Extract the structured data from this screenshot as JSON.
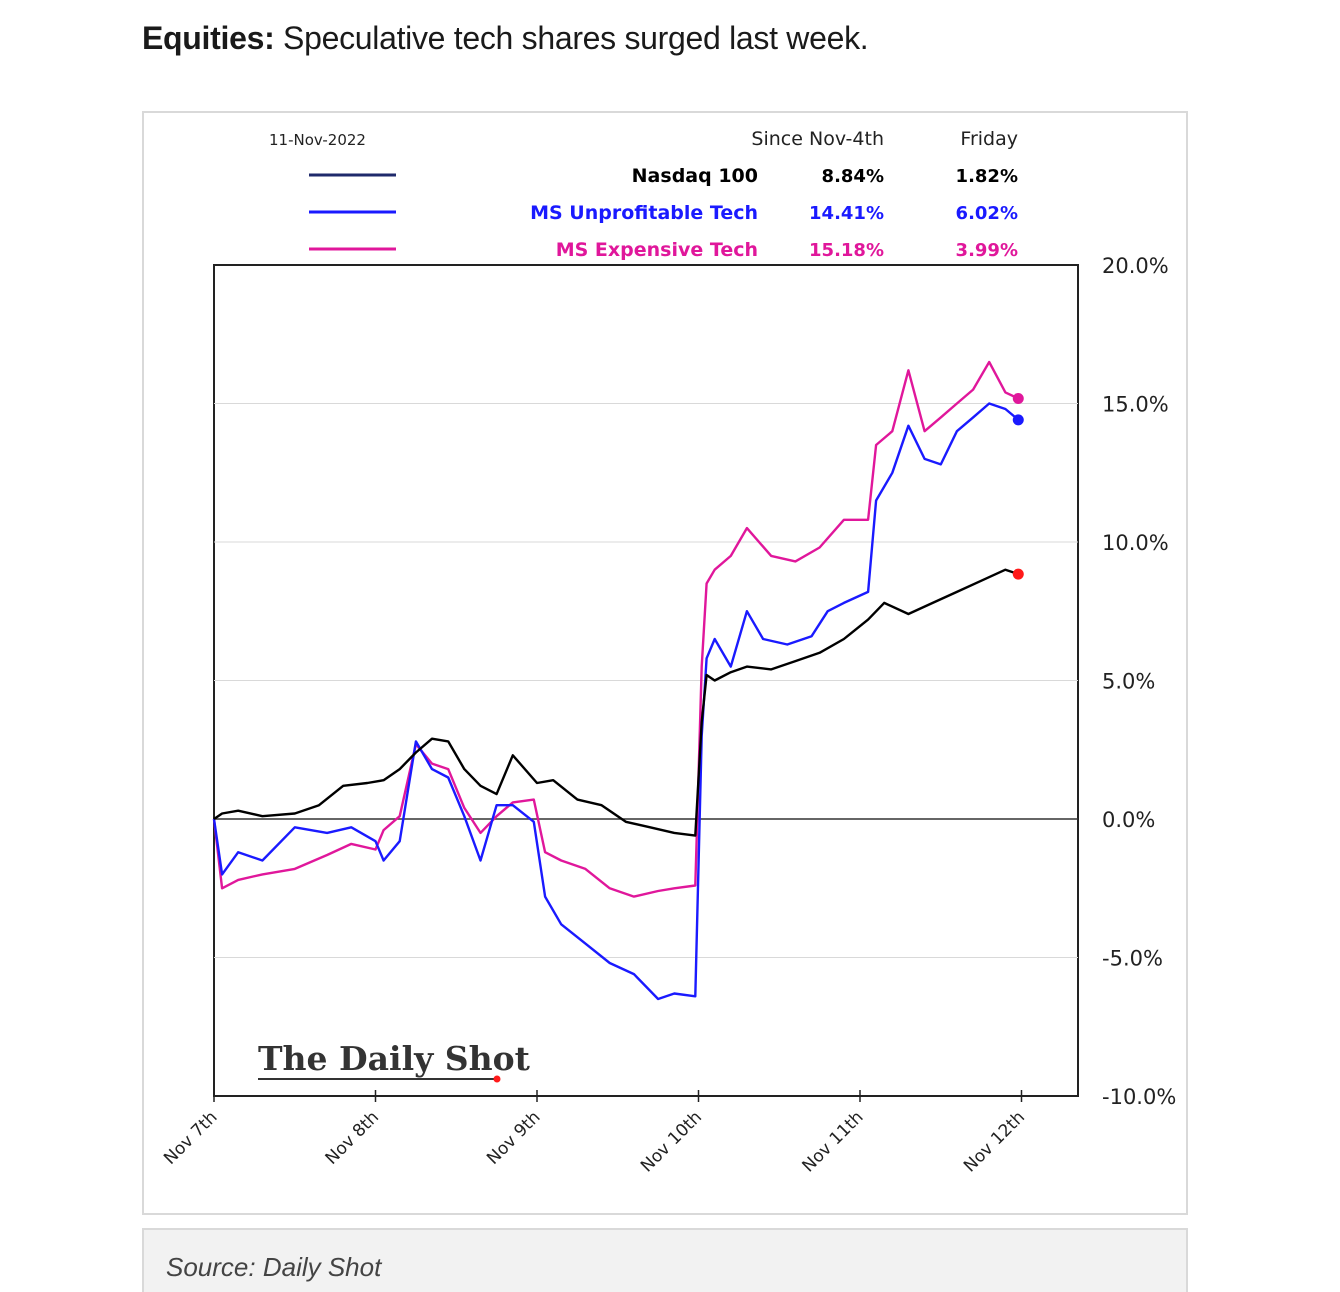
{
  "headline": {
    "lead": "Equities:",
    "text": " Speculative tech shares surged last week."
  },
  "caption": "Source: Daily Shot",
  "logo": "The Daily Shot",
  "colors": {
    "nasdaq": "#000000",
    "unprofitable": "#1a1aff",
    "expensive": "#e0179b",
    "endpoint_nasdaq": "#ff1a1a",
    "legend_nasdaq_line": "#1f2a6b",
    "grid": "#d9d9d9"
  },
  "legend": {
    "date": "11-Nov-2022",
    "col_since": "Since Nov-4th",
    "col_friday": "Friday",
    "rows": [
      {
        "name": "Nasdaq 100",
        "since": "8.84%",
        "friday": "1.82%",
        "color": "#000000",
        "line_color": "#1f2a6b"
      },
      {
        "name": "MS Unprofitable Tech",
        "since": "14.41%",
        "friday": "6.02%",
        "color": "#1a1aff",
        "line_color": "#1a1aff"
      },
      {
        "name": "MS Expensive Tech",
        "since": "15.18%",
        "friday": "3.99%",
        "color": "#e0179b",
        "line_color": "#e0179b"
      }
    ]
  },
  "chart_data": {
    "type": "line",
    "ylim": [
      -10,
      20
    ],
    "yticks": [
      20,
      15,
      10,
      5,
      0,
      -5,
      -10
    ],
    "ytick_labels": [
      "20.0%",
      "15.0%",
      "10.0%",
      "5.0%",
      "0.0%",
      "-5.0%",
      "-10.0%"
    ],
    "xlim": [
      0,
      5.2
    ],
    "xticks": [
      0,
      1,
      2,
      3,
      4,
      5
    ],
    "xtick_labels": [
      "Nov 7th",
      "Nov 8th",
      "Nov 9th",
      "Nov 10th",
      "Nov 11th",
      "Nov 12th"
    ],
    "grid": true,
    "series": [
      {
        "name": "Nasdaq 100",
        "color": "#000000",
        "x": [
          0,
          0.05,
          0.15,
          0.3,
          0.5,
          0.65,
          0.8,
          0.95,
          1.05,
          1.15,
          1.25,
          1.35,
          1.45,
          1.55,
          1.65,
          1.75,
          1.85,
          2.0,
          2.1,
          2.25,
          2.4,
          2.55,
          2.7,
          2.85,
          2.98,
          3.02,
          3.05,
          3.1,
          3.2,
          3.3,
          3.45,
          3.6,
          3.75,
          3.9,
          4.05,
          4.15,
          4.3,
          4.45,
          4.6,
          4.75,
          4.9,
          4.98
        ],
        "y": [
          0,
          0.2,
          0.3,
          0.1,
          0.2,
          0.5,
          1.2,
          1.3,
          1.4,
          1.8,
          2.4,
          2.9,
          2.8,
          1.8,
          1.2,
          0.9,
          2.3,
          1.3,
          1.4,
          0.7,
          0.5,
          -0.1,
          -0.3,
          -0.5,
          -0.6,
          3.5,
          5.2,
          5.0,
          5.3,
          5.5,
          5.4,
          5.7,
          6.0,
          6.5,
          7.2,
          7.8,
          7.4,
          7.8,
          8.2,
          8.6,
          9.0,
          8.84
        ]
      },
      {
        "name": "MS Unprofitable Tech",
        "color": "#1a1aff",
        "x": [
          0,
          0.05,
          0.15,
          0.3,
          0.5,
          0.7,
          0.85,
          1.0,
          1.05,
          1.15,
          1.25,
          1.35,
          1.45,
          1.55,
          1.65,
          1.75,
          1.85,
          1.98,
          2.05,
          2.15,
          2.3,
          2.45,
          2.6,
          2.75,
          2.85,
          2.98,
          3.02,
          3.05,
          3.1,
          3.2,
          3.3,
          3.4,
          3.55,
          3.7,
          3.8,
          3.9,
          4.05,
          4.1,
          4.2,
          4.3,
          4.4,
          4.5,
          4.6,
          4.7,
          4.8,
          4.9,
          4.98
        ],
        "y": [
          0,
          -2.0,
          -1.2,
          -1.5,
          -0.3,
          -0.5,
          -0.3,
          -0.8,
          -1.5,
          -0.8,
          2.8,
          1.8,
          1.5,
          0.1,
          -1.5,
          0.5,
          0.5,
          -0.1,
          -2.8,
          -3.8,
          -4.5,
          -5.2,
          -5.6,
          -6.5,
          -6.3,
          -6.4,
          3.0,
          5.8,
          6.5,
          5.5,
          7.5,
          6.5,
          6.3,
          6.6,
          7.5,
          7.8,
          8.2,
          11.5,
          12.5,
          14.2,
          13.0,
          12.8,
          14.0,
          14.5,
          15.0,
          14.8,
          14.41
        ]
      },
      {
        "name": "MS Expensive Tech",
        "color": "#e0179b",
        "x": [
          0,
          0.05,
          0.15,
          0.3,
          0.5,
          0.7,
          0.85,
          1.0,
          1.05,
          1.15,
          1.25,
          1.35,
          1.45,
          1.55,
          1.65,
          1.75,
          1.85,
          1.98,
          2.05,
          2.15,
          2.3,
          2.45,
          2.6,
          2.75,
          2.85,
          2.98,
          3.02,
          3.05,
          3.1,
          3.2,
          3.3,
          3.45,
          3.6,
          3.75,
          3.9,
          4.05,
          4.1,
          4.2,
          4.3,
          4.4,
          4.5,
          4.6,
          4.7,
          4.8,
          4.9,
          4.98
        ],
        "y": [
          0,
          -2.5,
          -2.2,
          -2.0,
          -1.8,
          -1.3,
          -0.9,
          -1.1,
          -0.4,
          0.1,
          2.7,
          2.0,
          1.8,
          0.4,
          -0.5,
          0.1,
          0.6,
          0.7,
          -1.2,
          -1.5,
          -1.8,
          -2.5,
          -2.8,
          -2.6,
          -2.5,
          -2.4,
          5.5,
          8.5,
          9.0,
          9.5,
          10.5,
          9.5,
          9.3,
          9.8,
          10.8,
          10.8,
          13.5,
          14.0,
          16.2,
          14.0,
          14.5,
          15.0,
          15.5,
          16.5,
          15.4,
          15.18
        ]
      }
    ]
  }
}
